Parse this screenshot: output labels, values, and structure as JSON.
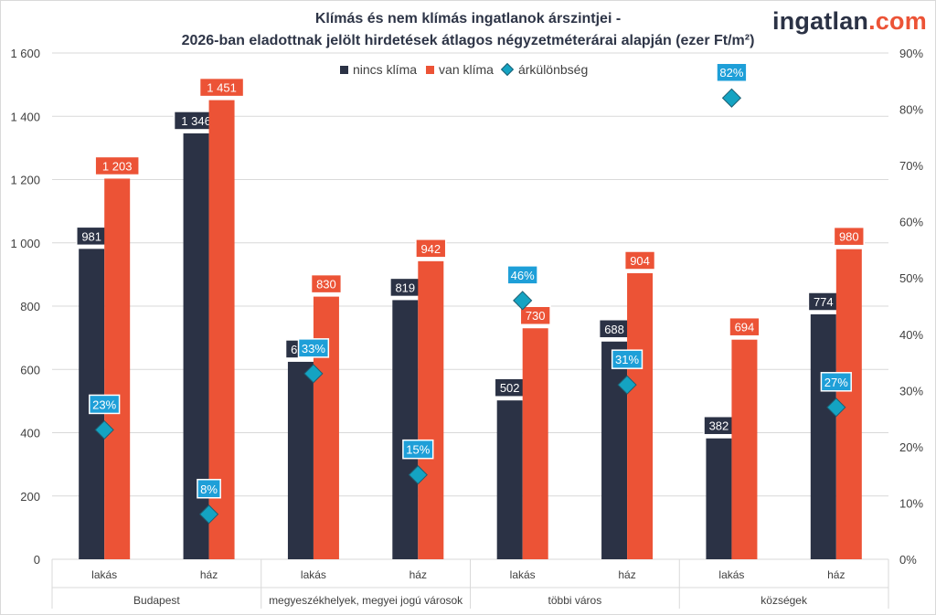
{
  "title_line1": "Klímás és nem klímás ingatlanok árszintjei -",
  "title_line2": "2026-ban eladottnak jelölt hirdetések átlagos négyzetméterárai alapján (ezer Ft/m²)",
  "logo_part1": "ingatlan",
  "logo_part2": ".com",
  "colors": {
    "nincs": "#2b3245",
    "van": "#ec5336",
    "diff": "#14a3c2",
    "diff_label": "#1e9fd8",
    "grid": "#d9d9d9"
  },
  "chart_data": {
    "type": "bar",
    "groups": [
      "Budapest",
      "megyeszékhelyek, megyei jogú városok",
      "többi város",
      "községek"
    ],
    "categories": [
      "lakás",
      "ház",
      "lakás",
      "ház",
      "lakás",
      "ház",
      "lakás",
      "ház"
    ],
    "series": [
      {
        "name": "nincs klíma",
        "values": [
          981,
          1346,
          624,
          819,
          502,
          688,
          382,
          774
        ],
        "labels": [
          "981",
          "1 346",
          "624",
          "819",
          "502",
          "688",
          "382",
          "774"
        ]
      },
      {
        "name": "van klíma",
        "values": [
          1203,
          1451,
          830,
          942,
          730,
          904,
          694,
          980
        ],
        "labels": [
          "1 203",
          "1 451",
          "830",
          "942",
          "730",
          "904",
          "694",
          "980"
        ]
      },
      {
        "name": "árkülönbség",
        "axis": "right",
        "values": [
          23,
          8,
          33,
          15,
          46,
          31,
          82,
          27
        ],
        "labels": [
          "23%",
          "8%",
          "33%",
          "15%",
          "46%",
          "31%",
          "82%",
          "27%"
        ]
      }
    ],
    "y_left": {
      "min": 0,
      "max": 1600,
      "ticks": [
        "0",
        "200",
        "400",
        "600",
        "800",
        "1 000",
        "1 200",
        "1 400",
        "1 600"
      ]
    },
    "y_right": {
      "min": 0,
      "max": 90,
      "ticks": [
        "0%",
        "10%",
        "20%",
        "30%",
        "40%",
        "50%",
        "60%",
        "70%",
        "80%",
        "90%"
      ]
    },
    "legend_position": "top",
    "grid": true
  }
}
